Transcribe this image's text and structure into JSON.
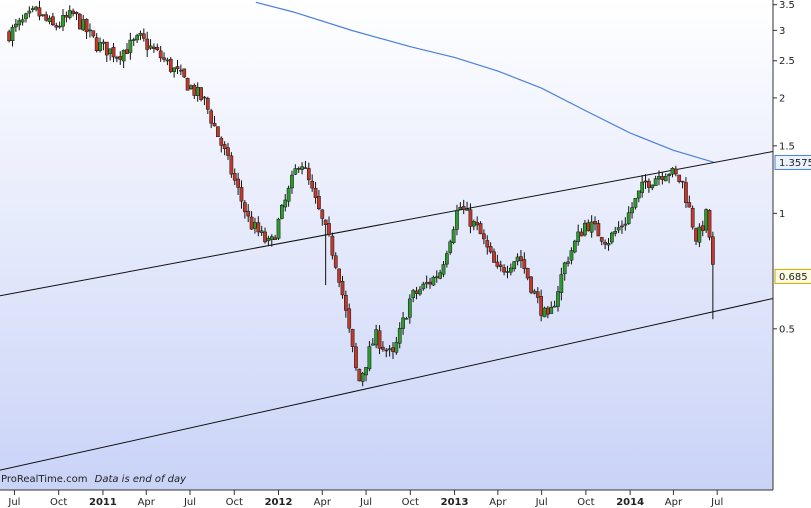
{
  "footer": {
    "brand": "ProRealTime.com",
    "note": "Data is end of day"
  },
  "colors": {
    "background_top": "#ffffff",
    "background_bottom": "#c9d3f7",
    "up_candle": "#2e9a2e",
    "down_candle": "#c0392b",
    "moving_average": "#4a7fe0",
    "channel_lines": "#111111",
    "price_tag_bg": "#fffbe0",
    "ma_tag_bg": "#eaf3ff"
  },
  "chart_data": {
    "type": "candlestick",
    "scale": "log",
    "ylim": [
      0.19,
      3.6
    ],
    "y_ticks": [
      3.5,
      3,
      2.5,
      2,
      1.5,
      1,
      0.5
    ],
    "x_ticks": [
      {
        "label": "Jul",
        "date": "2010-07",
        "bold": false
      },
      {
        "label": "Oct",
        "date": "2010-10",
        "bold": false
      },
      {
        "label": "2011",
        "date": "2011-01",
        "bold": true
      },
      {
        "label": "Apr",
        "date": "2011-04",
        "bold": false
      },
      {
        "label": "Jul",
        "date": "2011-07",
        "bold": false
      },
      {
        "label": "Oct",
        "date": "2011-10",
        "bold": false
      },
      {
        "label": "2012",
        "date": "2012-01",
        "bold": true
      },
      {
        "label": "Apr",
        "date": "2012-04",
        "bold": false
      },
      {
        "label": "Jul",
        "date": "2012-07",
        "bold": false
      },
      {
        "label": "Oct",
        "date": "2012-10",
        "bold": false
      },
      {
        "label": "2013",
        "date": "2013-01",
        "bold": true
      },
      {
        "label": "Apr",
        "date": "2013-04",
        "bold": false
      },
      {
        "label": "Jul",
        "date": "2013-07",
        "bold": false
      },
      {
        "label": "Oct",
        "date": "2013-10",
        "bold": false
      },
      {
        "label": "2014",
        "date": "2014-01",
        "bold": true
      },
      {
        "label": "Apr",
        "date": "2014-04",
        "bold": false
      },
      {
        "label": "Jul",
        "date": "2014-07",
        "bold": false
      }
    ],
    "last_price": "0.685",
    "ma_value": "1.3575",
    "anchor_path": [
      [
        "2010-06-20",
        2.95
      ],
      [
        "2010-08-15",
        3.35
      ],
      [
        "2010-09-20",
        3.05
      ],
      [
        "2010-11-01",
        3.3
      ],
      [
        "2010-12-20",
        2.75
      ],
      [
        "2011-02-01",
        2.6
      ],
      [
        "2011-03-20",
        2.85
      ],
      [
        "2011-04-25",
        2.6
      ],
      [
        "2011-06-15",
        2.25
      ],
      [
        "2011-08-01",
        1.95
      ],
      [
        "2011-09-10",
        1.45
      ],
      [
        "2011-11-01",
        0.95
      ],
      [
        "2011-12-15",
        0.82
      ],
      [
        "2012-02-15",
        1.4
      ],
      [
        "2012-03-20",
        1.05
      ],
      [
        "2012-04-25",
        0.78
      ],
      [
        "2012-05-05",
        0.7
      ],
      [
        "2012-06-15",
        0.36
      ],
      [
        "2012-07-20",
        0.48
      ],
      [
        "2012-08-25",
        0.42
      ],
      [
        "2012-10-01",
        0.6
      ],
      [
        "2012-12-01",
        0.7
      ],
      [
        "2013-01-10",
        1.05
      ],
      [
        "2013-02-20",
        0.9
      ],
      [
        "2013-04-01",
        0.7
      ],
      [
        "2013-05-15",
        0.78
      ],
      [
        "2013-06-20",
        0.6
      ],
      [
        "2013-07-15",
        0.52
      ],
      [
        "2013-08-20",
        0.75
      ],
      [
        "2013-10-01",
        0.95
      ],
      [
        "2013-11-15",
        0.85
      ],
      [
        "2013-12-20",
        0.95
      ],
      [
        "2014-02-01",
        1.2
      ],
      [
        "2014-03-20",
        1.3
      ],
      [
        "2014-04-20",
        1.2
      ],
      [
        "2014-05-20",
        0.85
      ],
      [
        "2014-06-10",
        1.0
      ],
      [
        "2014-06-25",
        0.66
      ]
    ],
    "gaps": [
      {
        "date": "2012-04-10",
        "low": 0.65
      },
      {
        "date": "2014-06-25",
        "low": 0.53
      }
    ],
    "moving_average": [
      [
        "2011-11-15",
        3.55
      ],
      [
        "2012-02-01",
        3.35
      ],
      [
        "2012-06-01",
        3.0
      ],
      [
        "2012-10-01",
        2.72
      ],
      [
        "2013-01-01",
        2.55
      ],
      [
        "2013-04-01",
        2.35
      ],
      [
        "2013-07-01",
        2.12
      ],
      [
        "2013-10-01",
        1.85
      ],
      [
        "2014-01-01",
        1.62
      ],
      [
        "2014-04-01",
        1.46
      ],
      [
        "2014-06-25",
        1.3575
      ]
    ],
    "channel_upper": [
      [
        "2010-06-01",
        0.61
      ],
      [
        "2014-10-25",
        1.45
      ]
    ],
    "channel_lower": [
      [
        "2010-06-01",
        0.214
      ],
      [
        "2014-10-25",
        0.6
      ]
    ]
  }
}
